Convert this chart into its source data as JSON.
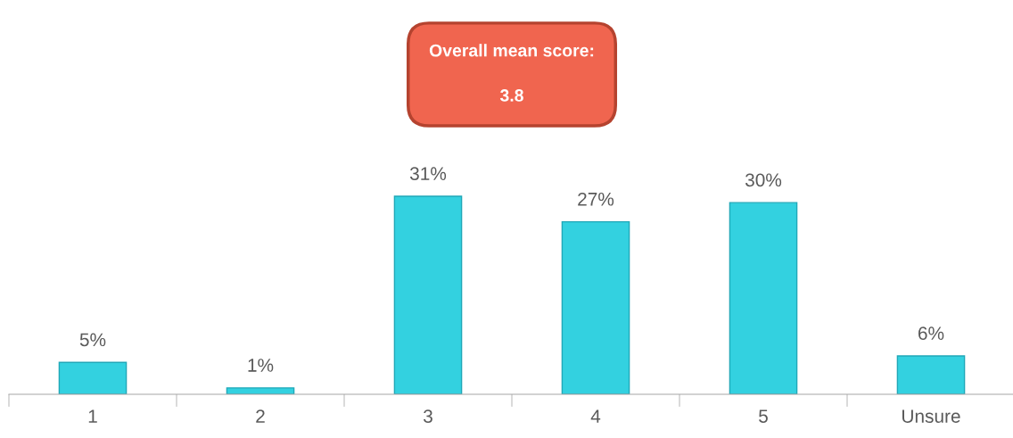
{
  "chart_data": {
    "type": "bar",
    "categories": [
      "1",
      "2",
      "3",
      "4",
      "5",
      "Unsure"
    ],
    "values": [
      5,
      1,
      31,
      27,
      30,
      6
    ],
    "value_labels": [
      "5%",
      "1%",
      "31%",
      "27%",
      "30%",
      "6%"
    ],
    "color": "#33d1e0",
    "annotations": [
      "Overall mean score:",
      "3.8"
    ],
    "grid": false,
    "legend": false
  }
}
